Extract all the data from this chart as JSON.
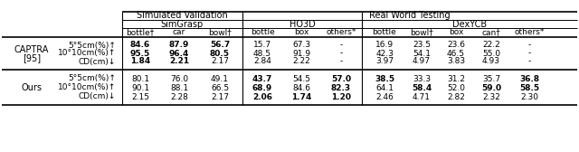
{
  "col_headers": [
    "bottle†",
    "car",
    "bowl†",
    "bottle",
    "box",
    "others*",
    "bottle",
    "bowl†",
    "box",
    "can†",
    "others*"
  ],
  "row_groups": [
    {
      "group_label1": "CAPTRA",
      "group_label2": "[95]",
      "rows": [
        {
          "metric": "5°5cm(%)↑",
          "values": [
            "84.6",
            "87.9",
            "56.7",
            "15.7",
            "67.3",
            "-",
            "16.9",
            "23.5",
            "23.6",
            "22.2",
            "-"
          ],
          "bold": [
            true,
            true,
            true,
            false,
            false,
            false,
            false,
            false,
            false,
            false,
            false
          ]
        },
        {
          "metric": "10°10cm(%)↑",
          "values": [
            "95.5",
            "96.4",
            "80.5",
            "48.5",
            "91.9",
            "-",
            "42.3",
            "54.1",
            "46.5",
            "55.0",
            "-"
          ],
          "bold": [
            true,
            true,
            true,
            false,
            false,
            false,
            false,
            false,
            false,
            false,
            false
          ]
        },
        {
          "metric": "CD(cm)↓",
          "values": [
            "1.84",
            "2.21",
            "2.17",
            "2.84",
            "2.22",
            "-",
            "3.97",
            "4.97",
            "3.83",
            "4.93",
            "-"
          ],
          "bold": [
            true,
            true,
            false,
            false,
            false,
            false,
            false,
            false,
            false,
            false,
            false
          ]
        }
      ]
    },
    {
      "group_label1": "Ours",
      "group_label2": "",
      "rows": [
        {
          "metric": "5°5cm(%)↑",
          "values": [
            "80.1",
            "76.0",
            "49.1",
            "43.7",
            "54.5",
            "57.0",
            "38.5",
            "33.3",
            "31.2",
            "35.7",
            "36.8"
          ],
          "bold": [
            false,
            false,
            false,
            true,
            false,
            true,
            true,
            false,
            false,
            false,
            true
          ]
        },
        {
          "metric": "10°10cm(%)↑",
          "values": [
            "90.1",
            "88.1",
            "66.5",
            "68.9",
            "84.6",
            "82.3",
            "64.1",
            "58.4",
            "52.0",
            "59.0",
            "58.5"
          ],
          "bold": [
            false,
            false,
            false,
            true,
            false,
            true,
            false,
            true,
            false,
            true,
            true
          ]
        },
        {
          "metric": "CD(cm)↓",
          "values": [
            "2.15",
            "2.28",
            "2.17",
            "2.06",
            "1.74",
            "1.20",
            "2.46",
            "4.71",
            "2.82",
            "2.32",
            "2.30"
          ],
          "bold": [
            false,
            false,
            false,
            true,
            true,
            true,
            false,
            false,
            false,
            false,
            false
          ]
        }
      ]
    }
  ],
  "bg_color": "#ffffff"
}
